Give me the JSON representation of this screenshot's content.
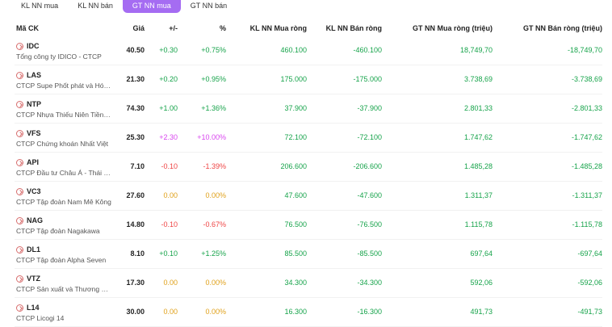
{
  "tabs": [
    {
      "label": "KL NN mua",
      "active": false
    },
    {
      "label": "KL NN bán",
      "active": false
    },
    {
      "label": "GT NN mua",
      "active": true
    },
    {
      "label": "GT NN bán",
      "active": false
    }
  ],
  "columns": {
    "symbol": "Mã CK",
    "price": "Giá",
    "change": "+/-",
    "pct": "%",
    "kl_buy": "KL NN Mua ròng",
    "kl_sell": "KL NN Bán ròng",
    "gt_buy": "GT NN Mua ròng (triệu)",
    "gt_sell": "GT NN Bán ròng (triệu)"
  },
  "rows": [
    {
      "symbol": "IDC",
      "company": "Tổng công ty IDICO - CTCP",
      "price": "40.50",
      "change": "+0.30",
      "pct": "+0.75%",
      "trend": "up",
      "kl_buy": "460.100",
      "kl_sell": "-460.100",
      "gt_buy": "18,749,70",
      "gt_sell": "-18,749,70"
    },
    {
      "symbol": "LAS",
      "company": "CTCP Supe Phốt phát và Hóa chất Lâm Thao",
      "price": "21.30",
      "change": "+0.20",
      "pct": "+0.95%",
      "trend": "up",
      "kl_buy": "175.000",
      "kl_sell": "-175.000",
      "gt_buy": "3.738,69",
      "gt_sell": "-3.738,69"
    },
    {
      "symbol": "NTP",
      "company": "CTCP Nhựa Thiếu Niên Tiền Phong",
      "price": "74.30",
      "change": "+1.00",
      "pct": "+1.36%",
      "trend": "up",
      "kl_buy": "37.900",
      "kl_sell": "-37.900",
      "gt_buy": "2.801,33",
      "gt_sell": "-2.801,33"
    },
    {
      "symbol": "VFS",
      "company": "CTCP Chứng khoán Nhất Việt",
      "price": "25.30",
      "change": "+2.30",
      "pct": "+10.00%",
      "trend": "ceil",
      "kl_buy": "72.100",
      "kl_sell": "-72.100",
      "gt_buy": "1.747,62",
      "gt_sell": "-1.747,62"
    },
    {
      "symbol": "API",
      "company": "CTCP Đầu tư Châu Á - Thái Bình Dương",
      "price": "7.10",
      "change": "-0.10",
      "pct": "-1.39%",
      "trend": "down",
      "kl_buy": "206.600",
      "kl_sell": "-206.600",
      "gt_buy": "1.485,28",
      "gt_sell": "-1.485,28"
    },
    {
      "symbol": "VC3",
      "company": "CTCP Tập đoàn Nam Mê Kông",
      "price": "27.60",
      "change": "0.00",
      "pct": "0.00%",
      "trend": "flat",
      "kl_buy": "47.600",
      "kl_sell": "-47.600",
      "gt_buy": "1.311,37",
      "gt_sell": "-1.311,37"
    },
    {
      "symbol": "NAG",
      "company": "CTCP Tập đoàn Nagakawa",
      "price": "14.80",
      "change": "-0.10",
      "pct": "-0.67%",
      "trend": "down",
      "kl_buy": "76.500",
      "kl_sell": "-76.500",
      "gt_buy": "1.115,78",
      "gt_sell": "-1.115,78"
    },
    {
      "symbol": "DL1",
      "company": "CTCP Tập đoàn Alpha Seven",
      "price": "8.10",
      "change": "+0.10",
      "pct": "+1.25%",
      "trend": "up",
      "kl_buy": "85.500",
      "kl_sell": "-85.500",
      "gt_buy": "697,64",
      "gt_sell": "-697,64"
    },
    {
      "symbol": "VTZ",
      "company": "CTCP Sản xuất và Thương mại Nhựa Việt Thành",
      "price": "17.30",
      "change": "0.00",
      "pct": "0.00%",
      "trend": "flat",
      "kl_buy": "34.300",
      "kl_sell": "-34.300",
      "gt_buy": "592,06",
      "gt_sell": "-592,06"
    },
    {
      "symbol": "L14",
      "company": "CTCP Licogi 14",
      "price": "30.00",
      "change": "0.00",
      "pct": "0.00%",
      "trend": "flat",
      "kl_buy": "16.300",
      "kl_sell": "-16.300",
      "gt_buy": "491,73",
      "gt_sell": "-491,73"
    }
  ]
}
